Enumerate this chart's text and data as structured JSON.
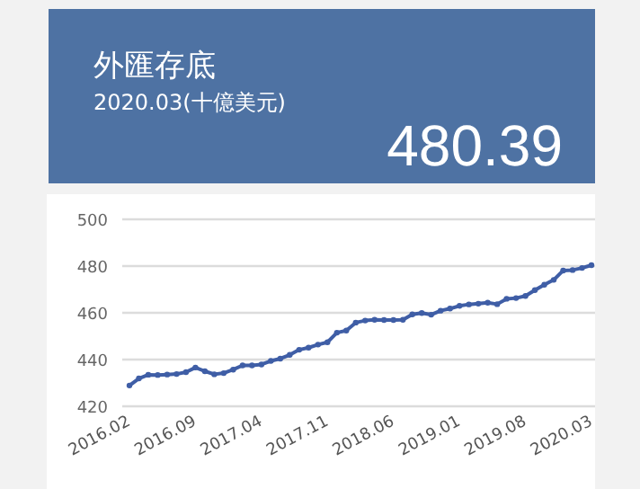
{
  "chart_data": [
    {
      "type": "other",
      "title": "外匯存底",
      "subtitle": "2020.03(十億美元)",
      "color": "#4e72a3",
      "annotations": [
        "480.39"
      ]
    },
    {
      "type": "line",
      "categories": [
        "2016.02",
        null,
        null,
        null,
        null,
        null,
        null,
        "2016.09",
        null,
        null,
        null,
        null,
        null,
        null,
        "2017.04",
        null,
        null,
        null,
        null,
        null,
        null,
        "2017.11",
        null,
        null,
        null,
        null,
        null,
        null,
        "2018.06",
        null,
        null,
        null,
        null,
        null,
        null,
        "2019.01",
        null,
        null,
        null,
        null,
        null,
        null,
        "2019.08",
        null,
        null,
        null,
        null,
        null,
        null,
        "2020.03"
      ],
      "series": [
        {
          "color": "#3f5ea6",
          "values": [
            428.9,
            431.9,
            433.5,
            433.4,
            433.6,
            433.8,
            434.6,
            436.6,
            435.0,
            433.7,
            434.2,
            435.7,
            437.5,
            437.5,
            437.9,
            439.4,
            440.4,
            442.0,
            444.2,
            445.1,
            446.4,
            447.4,
            451.5,
            452.4,
            455.8,
            456.7,
            457.0,
            456.9,
            456.9,
            457.0,
            459.3,
            459.9,
            459.2,
            460.9,
            461.8,
            463.0,
            463.6,
            463.9,
            464.3,
            463.7,
            466.0,
            466.3,
            467.2,
            469.7,
            472.0,
            474.1,
            478.1,
            478.3,
            479.2,
            480.4
          ]
        }
      ],
      "ylim": [
        420,
        500
      ],
      "yticks": [
        420,
        440,
        460,
        480,
        500
      ],
      "grid": "y",
      "marker": "circle",
      "line_style": "solid"
    }
  ]
}
